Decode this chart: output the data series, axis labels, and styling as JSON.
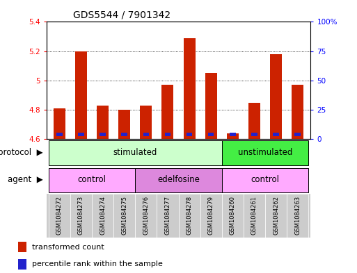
{
  "title": "GDS5544 / 7901342",
  "samples": [
    "GSM1084272",
    "GSM1084273",
    "GSM1084274",
    "GSM1084275",
    "GSM1084276",
    "GSM1084277",
    "GSM1084278",
    "GSM1084279",
    "GSM1084260",
    "GSM1084261",
    "GSM1084262",
    "GSM1084263"
  ],
  "red_values": [
    4.81,
    5.2,
    4.83,
    4.8,
    4.83,
    4.97,
    5.29,
    5.05,
    4.64,
    4.85,
    5.18,
    4.97
  ],
  "blue_fractions": [
    0.47,
    0.47,
    0.47,
    0.47,
    0.47,
    0.47,
    0.47,
    0.47,
    0.03,
    0.47,
    0.47,
    0.47
  ],
  "ylim_left": [
    4.6,
    5.4
  ],
  "ylim_right": [
    0,
    100
  ],
  "yticks_left": [
    4.6,
    4.8,
    5.0,
    5.2,
    5.4
  ],
  "ytick_labels_left": [
    "4.6",
    "4.8",
    "5",
    "5.2",
    "5.4"
  ],
  "yticks_right": [
    0,
    25,
    50,
    75,
    100
  ],
  "ytick_labels_right": [
    "0",
    "25",
    "50",
    "75",
    "100%"
  ],
  "bar_width": 0.55,
  "protocol_stimulated_color": "#ccffcc",
  "protocol_unstimulated_color": "#44ee44",
  "agent_control_color": "#ffaaff",
  "agent_edelfosine_color": "#dd88dd",
  "sample_bg_color": "#cccccc",
  "bar_color_red": "#cc2200",
  "bar_color_blue": "#2222cc",
  "baseline": 4.6,
  "grid_color": "#000000",
  "grid_lines": [
    4.8,
    5.0,
    5.2
  ]
}
